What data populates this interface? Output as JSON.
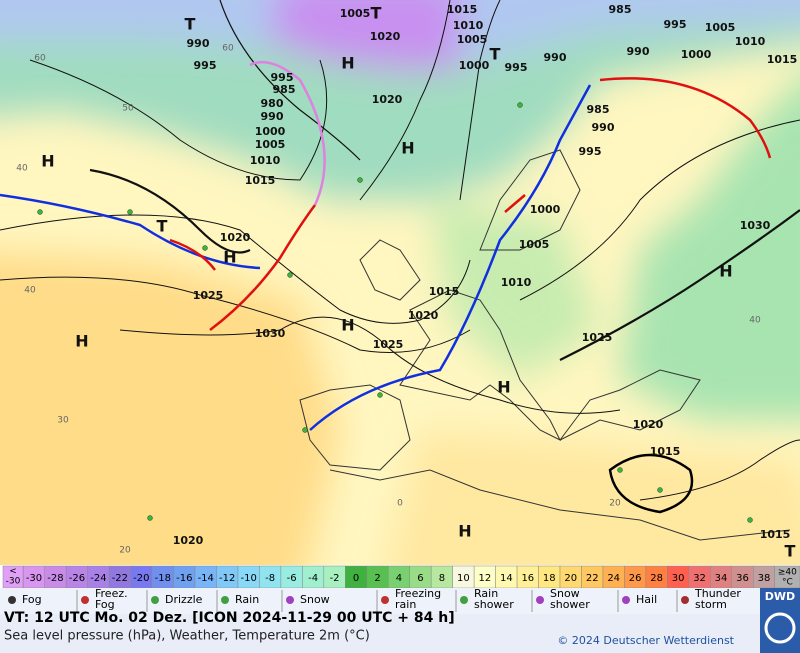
{
  "map": {
    "isobar_labels": [
      "1005",
      "1015",
      "985",
      "995",
      "1005",
      "1010",
      "1015",
      "1010",
      "1020",
      "1005",
      "990",
      "995",
      "995",
      "985",
      "980",
      "990",
      "1000",
      "995",
      "990",
      "990",
      "1000",
      "1020",
      "1000",
      "1005",
      "1010",
      "1015",
      "985",
      "990",
      "995",
      "1000",
      "1005",
      "1010",
      "1030",
      "1020",
      "1025",
      "1030",
      "1015",
      "1020",
      "1025",
      "1025",
      "1020",
      "1015",
      "1020",
      "1015"
    ],
    "centers": [
      "T",
      "T",
      "T",
      "H",
      "H",
      "H",
      "T",
      "H",
      "H",
      "H",
      "H",
      "H",
      "T",
      "H"
    ],
    "temperature_labels": [
      "60",
      "60",
      "50",
      "40",
      "40",
      "30",
      "20",
      "40",
      "0",
      "20"
    ]
  },
  "color_scale": {
    "unit": "°C",
    "low_label": [
      "<",
      "-30"
    ],
    "high_label": [
      "≥40",
      "°C"
    ],
    "values": [
      -30,
      -28,
      -26,
      -24,
      -22,
      -20,
      -18,
      -16,
      -14,
      -12,
      -10,
      -8,
      -6,
      -4,
      -2,
      0,
      2,
      4,
      6,
      8,
      10,
      12,
      14,
      16,
      18,
      20,
      22,
      24,
      26,
      28,
      30,
      32,
      34,
      36,
      38
    ],
    "colors": [
      "#d896f0",
      "#c88ce8",
      "#b884e8",
      "#a880e8",
      "#9078e0",
      "#7878f0",
      "#7090f0",
      "#70a0f0",
      "#78b4f8",
      "#80c8f8",
      "#88d8f8",
      "#90e4f0",
      "#98ece0",
      "#a0f0d0",
      "#a8f0c0",
      "#40b040",
      "#58c050",
      "#78d070",
      "#98dc88",
      "#b8e8a0",
      "#f8f8e0",
      "#ffffc8",
      "#fff8b0",
      "#fff098",
      "#ffe880",
      "#ffd870",
      "#ffc860",
      "#ffb050",
      "#ff9848",
      "#ff8040",
      "#ff6050",
      "#f07070",
      "#e08080",
      "#d09090",
      "#c0a0a0"
    ],
    "low_color": "#e0a0f8",
    "high_color": "#b0b0b0"
  },
  "weather_legend": [
    [
      "Fog"
    ],
    [
      "Freez.",
      "Fog"
    ],
    [
      "Drizzle"
    ],
    [
      "Rain"
    ],
    [
      "Snow"
    ],
    [
      "Freezing",
      "rain"
    ],
    [
      "Rain",
      "shower"
    ],
    [
      "Snow",
      "shower"
    ],
    [
      "Hail"
    ],
    [
      "Thunder",
      "storm"
    ]
  ],
  "footer": {
    "valid_time": "VT: 12 UTC Mo.  02 Dez. [ICON 2024-11-29  00 UTC + 84 h]",
    "description": "Sea level pressure (hPa), Weather, Temperature 2m (°C)",
    "copyright": "© 2024 Deutscher Wetterdienst",
    "logo": "DWD"
  }
}
